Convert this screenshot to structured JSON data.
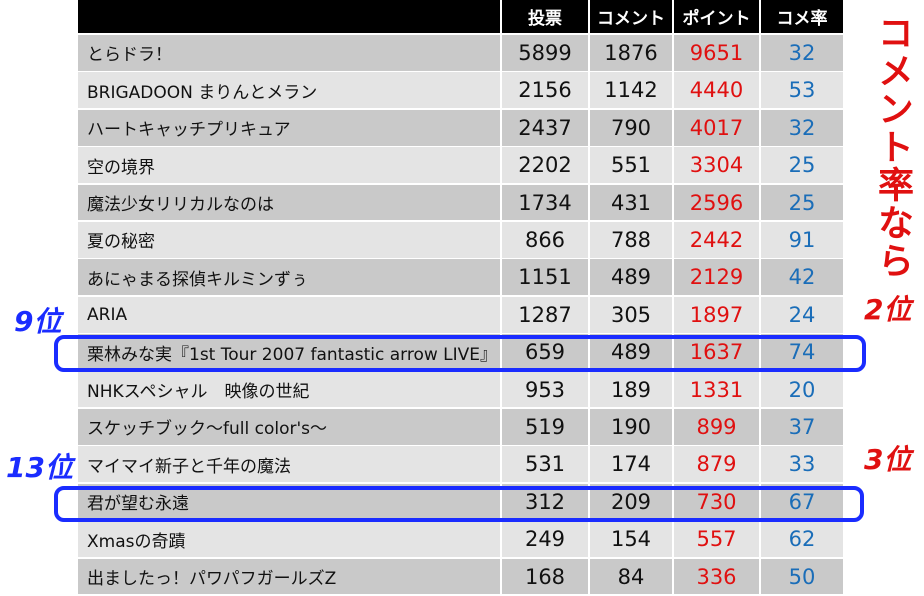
{
  "table": {
    "header": [
      "投票",
      "コメント",
      "ポイント",
      "コメ率"
    ],
    "rows": [
      [
        "とらドラ！",
        5899,
        1876,
        9651,
        32
      ],
      [
        "BRIGADOON まりんとメラン",
        2156,
        1142,
        4440,
        53
      ],
      [
        "ハートキャッチプリキュア",
        2437,
        790,
        4017,
        32
      ],
      [
        "空の境界",
        2202,
        551,
        3304,
        25
      ],
      [
        "魔法少女リリカルなのは",
        1734,
        431,
        2596,
        25
      ],
      [
        "夏の秘密",
        866,
        788,
        2442,
        91
      ],
      [
        "あにゃまる探偵キルミンずぅ",
        1151,
        489,
        2129,
        42
      ],
      [
        "ARIA",
        1287,
        305,
        1897,
        24
      ],
      [
        "栗林みな実『1st Tour 2007 fantastic arrow LIVE』",
        659,
        489,
        1637,
        74
      ],
      [
        "NHKスペシャル　映像の世紀",
        953,
        189,
        1331,
        20
      ],
      [
        "スケッチブック〜full color's〜",
        519,
        190,
        899,
        37
      ],
      [
        "マイマイ新子と千年の魔法",
        531,
        174,
        879,
        33
      ],
      [
        "君が望む永遠",
        312,
        209,
        730,
        67
      ],
      [
        "Xmasの奇蹟",
        249,
        154,
        557,
        62
      ],
      [
        "出ましたっ！パワパフガールズZ",
        168,
        84,
        336,
        50
      ]
    ]
  },
  "annotations": {
    "side_note": "コメント率なら",
    "left_ranks": [
      "9位",
      "13位"
    ],
    "right_ranks": [
      "2位",
      "3位"
    ]
  }
}
